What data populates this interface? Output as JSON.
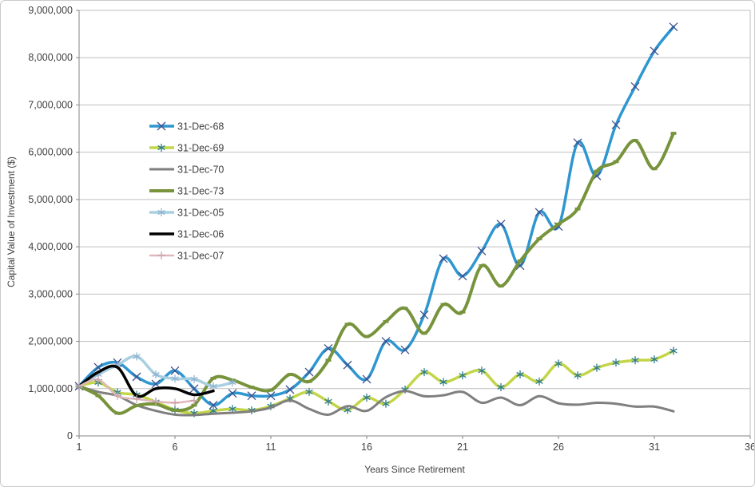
{
  "chart_data": {
    "type": "line",
    "title": "",
    "xlabel": "Years Since Retirement",
    "ylabel": "Capital Value of Investment ($)",
    "xlim": [
      1,
      36
    ],
    "ylim": [
      0,
      9000000
    ],
    "x_ticks": [
      1,
      6,
      11,
      16,
      21,
      26,
      31,
      36
    ],
    "y_ticks": [
      0,
      1000000,
      2000000,
      3000000,
      4000000,
      5000000,
      6000000,
      7000000,
      8000000,
      9000000
    ],
    "y_tick_labels": [
      "0",
      "1,000,000",
      "2,000,000",
      "3,000,000",
      "4,000,000",
      "5,000,000",
      "6,000,000",
      "7,000,000",
      "8,000,000",
      "9,000,000"
    ],
    "grid": true,
    "legend_position": "inside-upper-left",
    "series": [
      {
        "name": "31-Dec-68",
        "color": "#2e96d0",
        "marker": "x",
        "marker_color": "#41518c",
        "line_width": 3.5,
        "start_year": 1,
        "values": [
          1050000,
          1450000,
          1550000,
          1250000,
          1100000,
          1380000,
          1000000,
          650000,
          900000,
          850000,
          850000,
          980000,
          1350000,
          1850000,
          1500000,
          1200000,
          2000000,
          1820000,
          2560000,
          3750000,
          3380000,
          3910000,
          4480000,
          3600000,
          4730000,
          4430000,
          6200000,
          5500000,
          6580000,
          7390000,
          8140000,
          8650000
        ]
      },
      {
        "name": "31-Dec-69",
        "color": "#c3d548",
        "marker": "star6",
        "marker_color": "#2e7d8f",
        "line_width": 3.5,
        "start_year": 1,
        "values": [
          1050000,
          1130000,
          920000,
          870000,
          720000,
          550000,
          480000,
          530000,
          570000,
          540000,
          630000,
          790000,
          930000,
          730000,
          550000,
          810000,
          680000,
          980000,
          1350000,
          1140000,
          1280000,
          1380000,
          1030000,
          1300000,
          1150000,
          1530000,
          1280000,
          1440000,
          1550000,
          1600000,
          1620000,
          1800000
        ]
      },
      {
        "name": "31-Dec-70",
        "color": "#7f7f7f",
        "marker": "none",
        "marker_color": "#7f7f7f",
        "line_width": 3,
        "start_year": 1,
        "values": [
          1050000,
          930000,
          850000,
          650000,
          530000,
          450000,
          440000,
          470000,
          490000,
          520000,
          600000,
          750000,
          570000,
          450000,
          630000,
          530000,
          820000,
          950000,
          840000,
          860000,
          930000,
          700000,
          810000,
          650000,
          840000,
          690000,
          660000,
          700000,
          680000,
          620000,
          620000,
          520000
        ]
      },
      {
        "name": "31-Dec-73",
        "color": "#77933c",
        "marker": "dash",
        "marker_color": "#77933c",
        "line_width": 4,
        "start_year": 1,
        "values": [
          1050000,
          850000,
          480000,
          640000,
          670000,
          540000,
          650000,
          1220000,
          1180000,
          1030000,
          970000,
          1300000,
          1150000,
          1600000,
          2360000,
          2100000,
          2420000,
          2700000,
          2170000,
          2780000,
          2620000,
          3600000,
          3170000,
          3700000,
          4170000,
          4480000,
          4800000,
          5600000,
          5800000,
          6250000,
          5650000,
          6400000
        ]
      },
      {
        "name": "31-Dec-05",
        "color": "#a9cfe0",
        "marker": "star6",
        "marker_color": "#92b5d2",
        "line_width": 3.5,
        "start_year": 1,
        "values": [
          1050000,
          1300000,
          1500000,
          1680000,
          1300000,
          1210000,
          1200000,
          1050000,
          1130000
        ]
      },
      {
        "name": "31-Dec-06",
        "color": "#000000",
        "marker": "none",
        "marker_color": "#000000",
        "line_width": 3.5,
        "start_year": 1,
        "values": [
          1050000,
          1350000,
          1450000,
          850000,
          1000000,
          1000000,
          870000,
          950000
        ]
      },
      {
        "name": "31-Dec-07",
        "color": "#dfb8bc",
        "marker": "plus",
        "marker_color": "#c9a3aa",
        "line_width": 2.5,
        "start_year": 1,
        "values": [
          1050000,
          1190000,
          850000,
          780000,
          730000,
          700000,
          750000
        ]
      }
    ],
    "styles": {
      "gridline_color": "#bfbfbf",
      "axis_color": "#868686",
      "tick_label_color": "#3f3f3f",
      "background": "#ffffff"
    }
  }
}
